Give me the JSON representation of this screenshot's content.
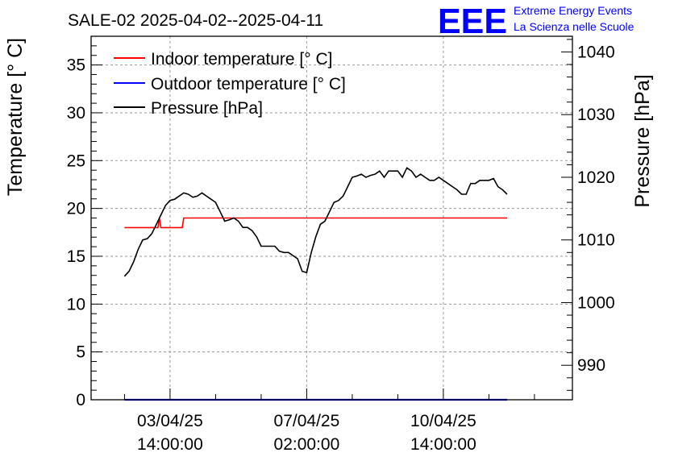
{
  "chart_data": {
    "type": "line",
    "title": "SALE-02 2025-04-02--2025-04-11",
    "brand": {
      "logo": "EEE",
      "line1": "Extreme Energy Events",
      "line2": "La Scienza nelle Scuole"
    },
    "ylabel_left": "Temperature [° C]",
    "ylabel_right": "Pressure [hPa]",
    "ylim_left": [
      0,
      38
    ],
    "ylim_right": [
      984.5,
      1042.5
    ],
    "xlim": [
      -2.2,
      29.5
    ],
    "left_ticks": [
      "0",
      "5",
      "10",
      "15",
      "20",
      "25",
      "30",
      "35"
    ],
    "right_ticks": [
      "990",
      "1000",
      "1010",
      "1020",
      "1030",
      "1040"
    ],
    "x_ticks": [
      {
        "x": 3.0,
        "label": [
          "03/04/25",
          "14:00:00"
        ]
      },
      {
        "x": 12.0,
        "label": [
          "07/04/25",
          "02:00:00"
        ]
      },
      {
        "x": 21.0,
        "label": [
          "10/04/25",
          "14:00:00"
        ]
      }
    ],
    "grid": true,
    "legend_position": "top-left",
    "series": [
      {
        "name": "Indoor temperature [° C]",
        "axis": "left",
        "color": "#ff0000",
        "x": [
          0.0,
          2.2,
          2.3,
          2.4,
          3.8,
          3.9,
          25.2
        ],
        "y": [
          18.0,
          18.0,
          19.0,
          18.0,
          18.0,
          19.0,
          19.0
        ]
      },
      {
        "name": "Outdoor temperature [° C]",
        "axis": "left",
        "color": "#0000ff",
        "x": [
          0.0,
          25.2
        ],
        "y": [
          0.0,
          0.0
        ]
      },
      {
        "name": "Pressure [hPa]",
        "axis": "right",
        "color": "#000000",
        "x": [
          0.0,
          0.3,
          0.6,
          0.9,
          1.2,
          1.5,
          1.8,
          2.1,
          2.4,
          2.7,
          3.0,
          3.3,
          3.6,
          3.9,
          4.2,
          4.5,
          4.8,
          5.1,
          5.4,
          5.7,
          6.0,
          6.3,
          6.6,
          6.9,
          7.2,
          7.5,
          7.8,
          8.1,
          8.4,
          8.7,
          9.0,
          9.3,
          9.6,
          9.9,
          10.2,
          10.5,
          10.8,
          11.1,
          11.4,
          11.7,
          12.0,
          12.3,
          12.6,
          12.9,
          13.2,
          13.5,
          13.8,
          14.1,
          14.4,
          14.7,
          15.0,
          15.3,
          15.6,
          15.9,
          16.2,
          16.5,
          16.8,
          17.1,
          17.4,
          17.7,
          18.0,
          18.3,
          18.6,
          18.9,
          19.2,
          19.5,
          19.8,
          20.1,
          20.4,
          20.7,
          21.0,
          21.3,
          21.6,
          21.9,
          22.2,
          22.5,
          22.8,
          23.1,
          23.4,
          23.7,
          24.0,
          24.3,
          24.6,
          24.9,
          25.2
        ],
        "y": [
          1004.2,
          1005.0,
          1006.5,
          1008.5,
          1010.0,
          1010.2,
          1011.0,
          1012.5,
          1014.0,
          1015.5,
          1016.3,
          1016.5,
          1017.0,
          1017.5,
          1017.3,
          1016.8,
          1017.0,
          1017.5,
          1017.0,
          1016.5,
          1016.0,
          1014.5,
          1013.0,
          1013.2,
          1013.5,
          1013.0,
          1012.0,
          1012.0,
          1011.5,
          1010.5,
          1009.0,
          1009.0,
          1009.0,
          1009.0,
          1008.2,
          1008.0,
          1008.0,
          1007.5,
          1007.0,
          1005.0,
          1004.8,
          1008.0,
          1010.5,
          1012.5,
          1013.0,
          1014.5,
          1016.0,
          1016.3,
          1017.0,
          1018.5,
          1020.0,
          1020.2,
          1020.5,
          1020.0,
          1020.3,
          1020.5,
          1021.0,
          1020.0,
          1021.0,
          1021.0,
          1021.0,
          1020.0,
          1021.5,
          1021.0,
          1020.0,
          1020.5,
          1020.0,
          1019.5,
          1019.5,
          1020.0,
          1019.5,
          1019.0,
          1018.5,
          1018.0,
          1017.3,
          1017.3,
          1019.0,
          1019.0,
          1019.5,
          1019.5,
          1019.5,
          1019.8,
          1018.5,
          1018.0,
          1017.3
        ]
      }
    ]
  }
}
